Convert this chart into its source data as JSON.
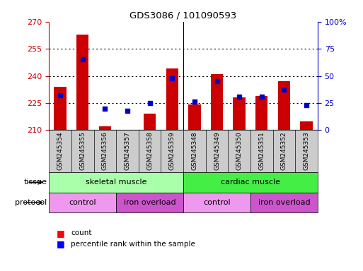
{
  "title": "GDS3086 / 101090593",
  "samples": [
    "GSM245354",
    "GSM245355",
    "GSM245356",
    "GSM245357",
    "GSM245358",
    "GSM245359",
    "GSM245348",
    "GSM245349",
    "GSM245350",
    "GSM245351",
    "GSM245352",
    "GSM245353"
  ],
  "red_values": [
    234,
    263,
    212,
    210,
    219,
    244,
    224,
    241,
    228,
    229,
    237,
    215
  ],
  "blue_values": [
    32,
    65,
    20,
    18,
    25,
    48,
    26,
    45,
    31,
    31,
    37,
    23
  ],
  "ylim_left": [
    210,
    270
  ],
  "ylim_right": [
    0,
    100
  ],
  "yticks_left": [
    210,
    225,
    240,
    255,
    270
  ],
  "yticks_right": [
    0,
    25,
    50,
    75,
    100
  ],
  "ytick_labels_left": [
    "210",
    "225",
    "240",
    "255",
    "270"
  ],
  "ytick_labels_right": [
    "0",
    "25",
    "50",
    "75",
    "100%"
  ],
  "left_axis_color": "#cc0000",
  "right_axis_color": "#0000cc",
  "bar_color": "#cc0000",
  "dot_color": "#0000cc",
  "tissue_groups": [
    {
      "label": "skeletal muscle",
      "start": 0,
      "end": 6,
      "color": "#aaffaa"
    },
    {
      "label": "cardiac muscle",
      "start": 6,
      "end": 12,
      "color": "#44ee44"
    }
  ],
  "protocol_groups": [
    {
      "label": "control",
      "start": 0,
      "end": 3,
      "color": "#ee99ee"
    },
    {
      "label": "iron overload",
      "start": 3,
      "end": 6,
      "color": "#cc55cc"
    },
    {
      "label": "control",
      "start": 6,
      "end": 9,
      "color": "#ee99ee"
    },
    {
      "label": "iron overload",
      "start": 9,
      "end": 12,
      "color": "#cc55cc"
    }
  ],
  "bar_width": 0.55,
  "grid_dotted_color": "#555555",
  "col_bg_color": "#cccccc",
  "sep_color": "#888888"
}
